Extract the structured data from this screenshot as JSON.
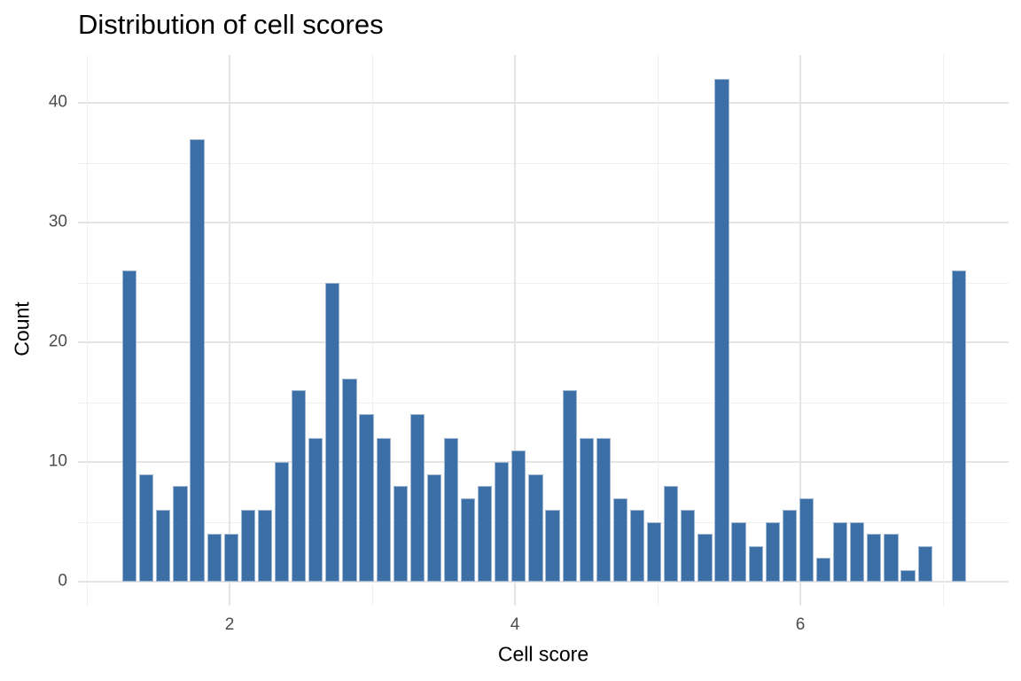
{
  "chart_data": {
    "type": "bar",
    "subtype": "histogram",
    "title": "Distribution of cell scores",
    "xlabel": "Cell score",
    "ylabel": "Count",
    "x_ticks": [
      2,
      4,
      6
    ],
    "x_minor_ticks": [
      1,
      3,
      5,
      7
    ],
    "y_ticks": [
      0,
      10,
      20,
      30,
      40
    ],
    "y_minor_ticks": [
      5,
      15,
      25,
      35
    ],
    "xlim": [
      0.94,
      7.46
    ],
    "ylim": [
      -2.1,
      44.0
    ],
    "bin_start": 1.24,
    "bin_width": 0.1186,
    "counts": [
      26,
      9,
      6,
      8,
      37,
      4,
      4,
      6,
      6,
      10,
      16,
      12,
      25,
      17,
      14,
      12,
      8,
      14,
      9,
      12,
      7,
      8,
      10,
      11,
      9,
      6,
      16,
      12,
      12,
      7,
      6,
      5,
      8,
      6,
      4,
      42,
      5,
      3,
      5,
      6,
      7,
      2,
      5,
      5,
      4,
      4,
      1,
      3,
      0,
      26
    ],
    "total_count": 500,
    "bar_fill_color": "#3C6FA6",
    "bar_edge_color": "#9FB7D2",
    "grid_major_color": "#E4E4E4",
    "grid_minor_color": "#EFEFEF",
    "tick_label_color": "#4D4D4D",
    "title_color": "#000000",
    "background_color": "#FFFFFF",
    "grid": "on",
    "legend": "none"
  }
}
